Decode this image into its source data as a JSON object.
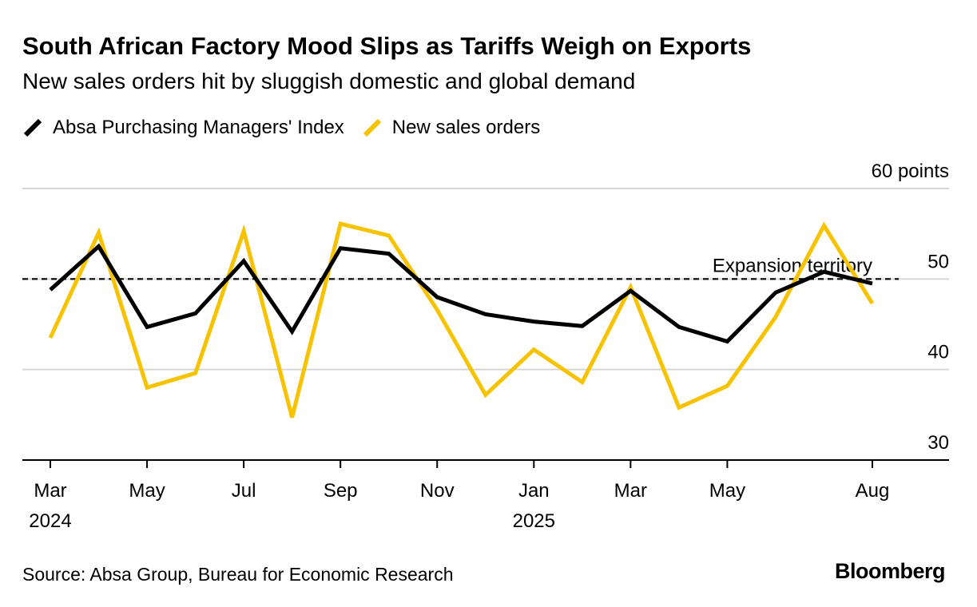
{
  "title": "South African Factory Mood Slips as Tariffs Weigh on Exports",
  "subtitle": "New sales orders hit by sluggish domestic and global demand",
  "source": "Source: Absa Group, Bureau for Economic Research",
  "logo": "Bloomberg",
  "colors": {
    "pmi": "#000000",
    "orders": "#f7c300",
    "grid": "#d6d6d6",
    "axis": "#000000"
  },
  "chart_data": {
    "type": "line",
    "x": [
      "2024-03",
      "2024-04",
      "2024-05",
      "2024-06",
      "2024-07",
      "2024-08",
      "2024-09",
      "2024-10",
      "2024-11",
      "2024-12",
      "2025-01",
      "2025-02",
      "2025-03",
      "2025-04",
      "2025-05",
      "2025-06",
      "2025-07",
      "2025-08"
    ],
    "series": [
      {
        "name": "Absa Purchasing Managers' Index",
        "color": "#000000",
        "values": [
          48.8,
          53.6,
          44.7,
          46.2,
          52.0,
          44.2,
          53.4,
          52.8,
          48.0,
          46.1,
          45.3,
          44.8,
          48.7,
          44.7,
          43.1,
          48.5,
          50.8,
          49.5
        ]
      },
      {
        "name": "New sales orders",
        "color": "#f7c300",
        "values": [
          43.5,
          55.1,
          38.0,
          39.6,
          55.3,
          34.7,
          56.1,
          54.8,
          46.6,
          37.2,
          42.2,
          38.6,
          49.1,
          35.8,
          38.2,
          45.8,
          55.9,
          47.3
        ]
      }
    ],
    "ylim": [
      30,
      60
    ],
    "yticks": [
      30,
      40,
      50,
      60
    ],
    "ytick_labels": [
      "30",
      "40",
      "50",
      "60 points"
    ],
    "xticks": [
      {
        "x": "2024-03",
        "label": "Mar",
        "year": "2024"
      },
      {
        "x": "2024-05",
        "label": "May"
      },
      {
        "x": "2024-07",
        "label": "Jul"
      },
      {
        "x": "2024-09",
        "label": "Sep"
      },
      {
        "x": "2024-11",
        "label": "Nov"
      },
      {
        "x": "2025-01",
        "label": "Jan",
        "year": "2025"
      },
      {
        "x": "2025-03",
        "label": "Mar"
      },
      {
        "x": "2025-05",
        "label": "May"
      },
      {
        "x": "2025-08",
        "label": "Aug"
      }
    ],
    "reference_line": {
      "y": 50,
      "label": "Expansion territory",
      "style": "dashed"
    },
    "grid": true,
    "legend_placement": "top-left"
  }
}
